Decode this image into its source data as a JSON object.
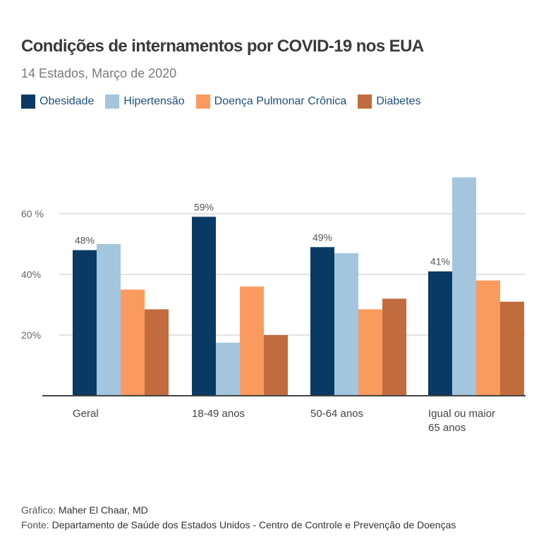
{
  "chart_data": {
    "type": "bar",
    "title": "Condições de internamentos por COVID-19 nos EUA",
    "subtitle": "14 Estados, Março de 2020",
    "categories": [
      "Geral",
      "18-49 anos",
      "50-64 anos",
      "Igual ou maior 65 anos"
    ],
    "category_lines": [
      [
        "Geral"
      ],
      [
        "18-49 anos"
      ],
      [
        "50-64 anos"
      ],
      [
        "Igual ou maior",
        "65 anos"
      ]
    ],
    "series": [
      {
        "name": "Obesidade",
        "color": "#083a63",
        "values": [
          48,
          59,
          49,
          41
        ]
      },
      {
        "name": "Hipertensão",
        "color": "#a3c6de",
        "values": [
          50,
          17.5,
          47,
          72
        ]
      },
      {
        "name": "Doença Pulmonar Crônica",
        "color": "#fb9a5e",
        "values": [
          35,
          36,
          28.5,
          38
        ]
      },
      {
        "name": "Diabetes",
        "color": "#c26b3e",
        "values": [
          28.5,
          20,
          32,
          31
        ]
      }
    ],
    "data_labels": [
      "48%",
      "59%",
      "49%",
      "41%"
    ],
    "yticks": [
      {
        "value": 20,
        "label": "20%"
      },
      {
        "value": 40,
        "label": "40%"
      },
      {
        "value": 60,
        "label": "60 %"
      }
    ],
    "ylim": [
      0,
      75
    ],
    "grid": true,
    "legend_placement": "top-left"
  },
  "footer": {
    "credit_label": "Gráfico:",
    "credit": "Maher El Chaar, MD",
    "source_label": "Fonte:",
    "source": "Departamento de Saúde dos Estados Unidos - Centro de Controle e Prevenção de Doenças"
  }
}
